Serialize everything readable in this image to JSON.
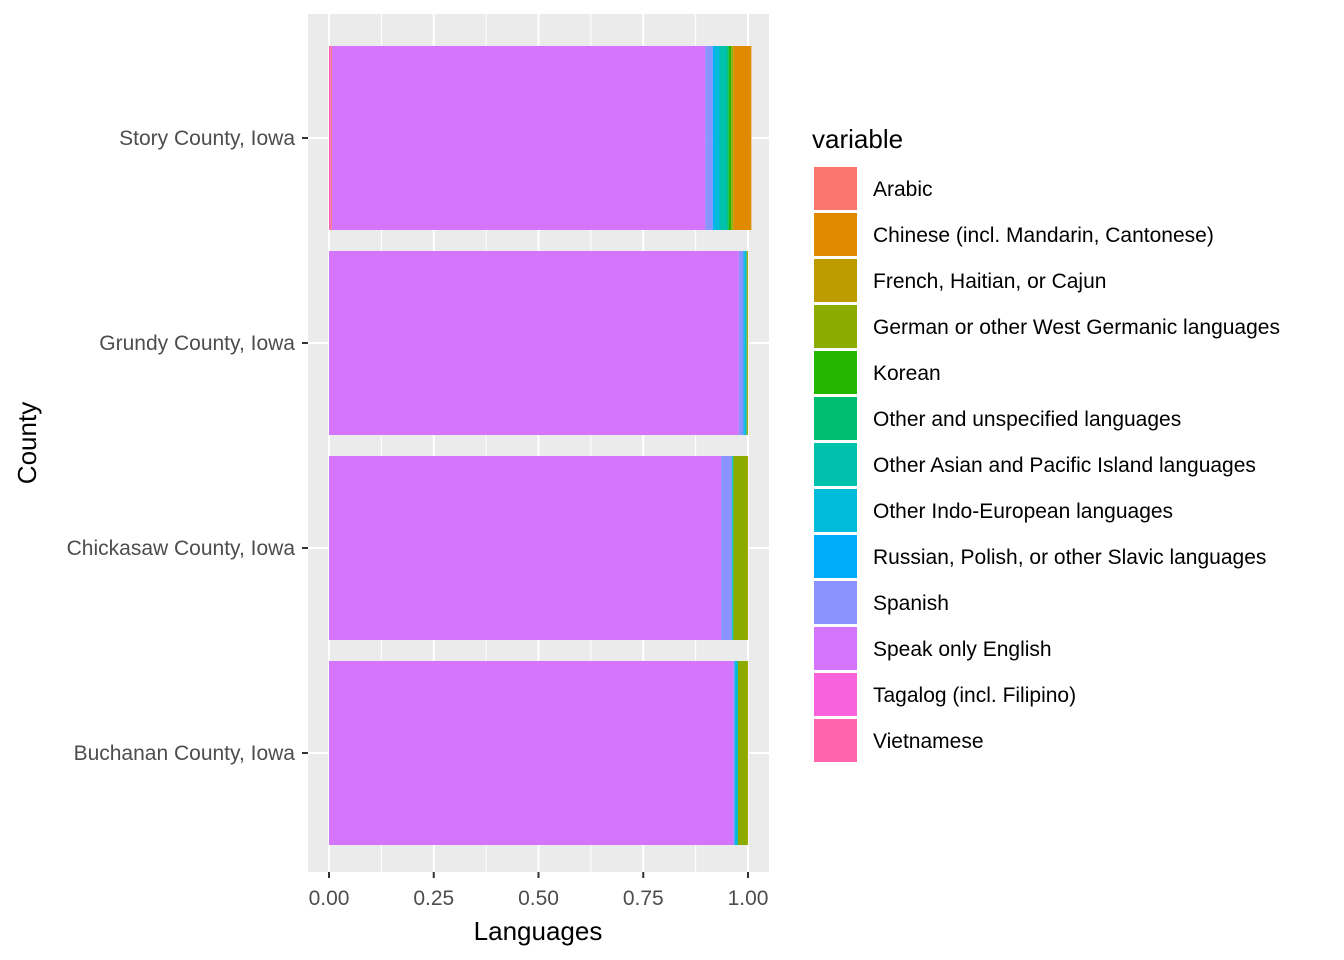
{
  "chart_data": {
    "type": "bar",
    "orientation": "horizontal",
    "stacked": true,
    "xlabel": "Languages",
    "ylabel": "County",
    "xlim": [
      0,
      1
    ],
    "x_ticks": [
      "0.00",
      "0.25",
      "0.50",
      "0.75",
      "1.00"
    ],
    "x_tick_values": [
      0,
      0.25,
      0.5,
      0.75,
      1.0
    ],
    "grid": true,
    "legend_position": "right",
    "legend_title": "variable",
    "categories": [
      "Story County, Iowa",
      "Grundy County, Iowa",
      "Chickasaw County, Iowa",
      "Buchanan County, Iowa"
    ],
    "series": [
      {
        "name": "Arabic",
        "color": "#F8766D",
        "values": [
          0.002,
          0,
          0,
          0
        ]
      },
      {
        "name": "Chinese (incl. Mandarin, Cantonese)",
        "color": "#E18A00",
        "values": [
          0.042,
          0,
          0,
          0
        ]
      },
      {
        "name": "French, Haitian, or Cajun",
        "color": "#BE9C00",
        "values": [
          0.002,
          0.001,
          0.001,
          0.001
        ]
      },
      {
        "name": "German or other West Germanic languages",
        "color": "#8CAB00",
        "values": [
          0.004,
          0.002,
          0.034,
          0.023
        ]
      },
      {
        "name": "Korean",
        "color": "#24B700",
        "values": [
          0.006,
          0,
          0,
          0
        ]
      },
      {
        "name": "Other and unspecified languages",
        "color": "#00BE70",
        "values": [
          0.004,
          0,
          0,
          0
        ]
      },
      {
        "name": "Other Asian and Pacific Island languages",
        "color": "#00C1AB",
        "values": [
          0.018,
          0.001,
          0.001,
          0.001
        ]
      },
      {
        "name": "Other Indo-European languages",
        "color": "#00BBDA",
        "values": [
          0.012,
          0.005,
          0.002,
          0.005
        ]
      },
      {
        "name": "Russian, Polish, or other Slavic languages",
        "color": "#00ACFC",
        "values": [
          0.004,
          0.002,
          0.001,
          0.002
        ]
      },
      {
        "name": "Spanish",
        "color": "#8B93FF",
        "values": [
          0.018,
          0.011,
          0.025,
          0.003
        ]
      },
      {
        "name": "Speak only English",
        "color": "#D575FE",
        "values": [
          0.891,
          0.978,
          0.936,
          0.965
        ]
      },
      {
        "name": "Tagalog (incl. Filipino)",
        "color": "#F962DD",
        "values": [
          0.001,
          0,
          0,
          0
        ]
      },
      {
        "name": "Vietnamese",
        "color": "#FF65AC",
        "values": [
          0.004,
          0,
          0,
          0
        ]
      }
    ]
  }
}
